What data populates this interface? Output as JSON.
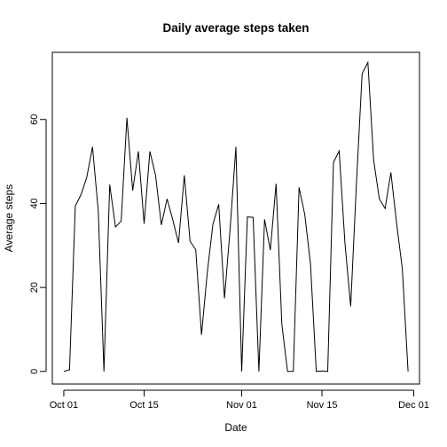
{
  "chart_data": {
    "type": "line",
    "title": "Daily average steps taken",
    "xlabel": "Date",
    "ylabel": "Average steps",
    "x_ticks": [
      {
        "date": "2012-10-01",
        "label": "Oct 01"
      },
      {
        "date": "2012-10-15",
        "label": "Oct 15"
      },
      {
        "date": "2012-11-01",
        "label": "Nov 01"
      },
      {
        "date": "2012-11-15",
        "label": "Nov 15"
      },
      {
        "date": "2012-12-01",
        "label": "Dec 01"
      }
    ],
    "y_ticks": [
      0,
      20,
      40,
      60
    ],
    "xlim": [
      "2012-09-29",
      "2012-12-02"
    ],
    "ylim": [
      -3,
      76
    ],
    "grid": false,
    "line_color": "#000000",
    "series": [
      {
        "x": [
          "2012-10-01",
          "2012-10-02",
          "2012-10-03",
          "2012-10-04",
          "2012-10-05",
          "2012-10-06",
          "2012-10-07",
          "2012-10-08",
          "2012-10-09",
          "2012-10-10",
          "2012-10-11",
          "2012-10-12",
          "2012-10-13",
          "2012-10-14",
          "2012-10-15",
          "2012-10-16",
          "2012-10-17",
          "2012-10-18",
          "2012-10-19",
          "2012-10-20",
          "2012-10-21",
          "2012-10-22",
          "2012-10-23",
          "2012-10-24",
          "2012-10-25",
          "2012-10-26",
          "2012-10-27",
          "2012-10-28",
          "2012-10-29",
          "2012-10-30",
          "2012-10-31",
          "2012-11-01",
          "2012-11-02",
          "2012-11-03",
          "2012-11-04",
          "2012-11-05",
          "2012-11-06",
          "2012-11-07",
          "2012-11-08",
          "2012-11-09",
          "2012-11-10",
          "2012-11-11",
          "2012-11-12",
          "2012-11-13",
          "2012-11-14",
          "2012-11-15",
          "2012-11-16",
          "2012-11-17",
          "2012-11-18",
          "2012-11-19",
          "2012-11-20",
          "2012-11-21",
          "2012-11-22",
          "2012-11-23",
          "2012-11-24",
          "2012-11-25",
          "2012-11-26",
          "2012-11-27",
          "2012-11-28",
          "2012-11-29",
          "2012-11-30"
        ],
        "values": [
          0,
          0.4,
          39.4,
          42.1,
          46.2,
          53.5,
          38.2,
          0,
          44.5,
          34.4,
          35.8,
          60.4,
          43.1,
          52.4,
          35.2,
          52.4,
          46.7,
          34.9,
          41.1,
          36.1,
          30.6,
          46.7,
          31.0,
          29.0,
          8.7,
          23.5,
          35.1,
          39.8,
          17.4,
          34.1,
          53.5,
          0,
          36.8,
          36.7,
          0,
          36.2,
          28.9,
          44.7,
          11.2,
          0,
          0,
          43.8,
          37.4,
          25.5,
          0,
          0.1,
          0,
          49.8,
          52.5,
          30.7,
          15.5,
          44.4,
          70.9,
          73.6,
          50.3,
          41.1,
          38.8,
          47.4,
          35.4,
          24.5,
          0
        ]
      }
    ]
  }
}
